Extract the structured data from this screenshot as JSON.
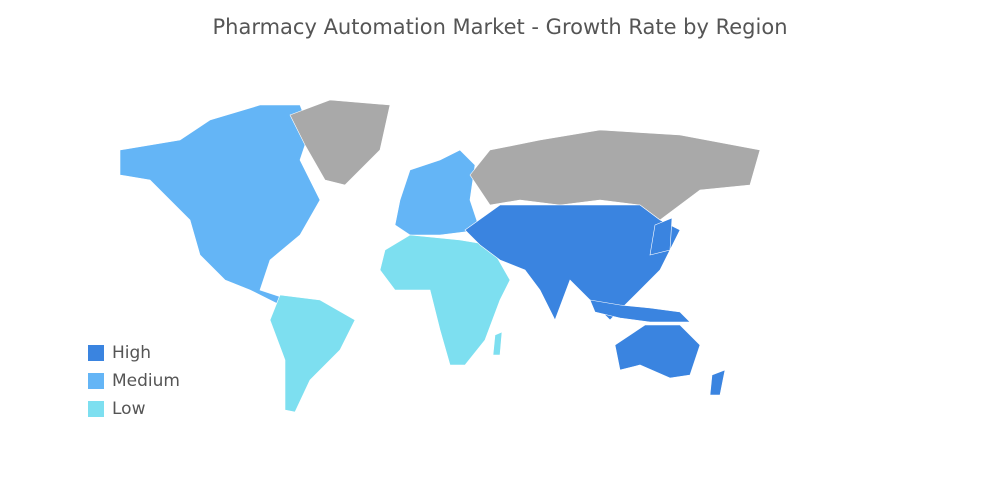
{
  "title": "Pharmacy Automation Market - Growth Rate by Region",
  "legend": [
    {
      "label": "High",
      "color": "#3a84e0"
    },
    {
      "label": "Medium",
      "color": "#64b5f6"
    },
    {
      "label": "Low",
      "color": "#7ddff0"
    }
  ],
  "no_data_color": "#a9a9a9"
}
